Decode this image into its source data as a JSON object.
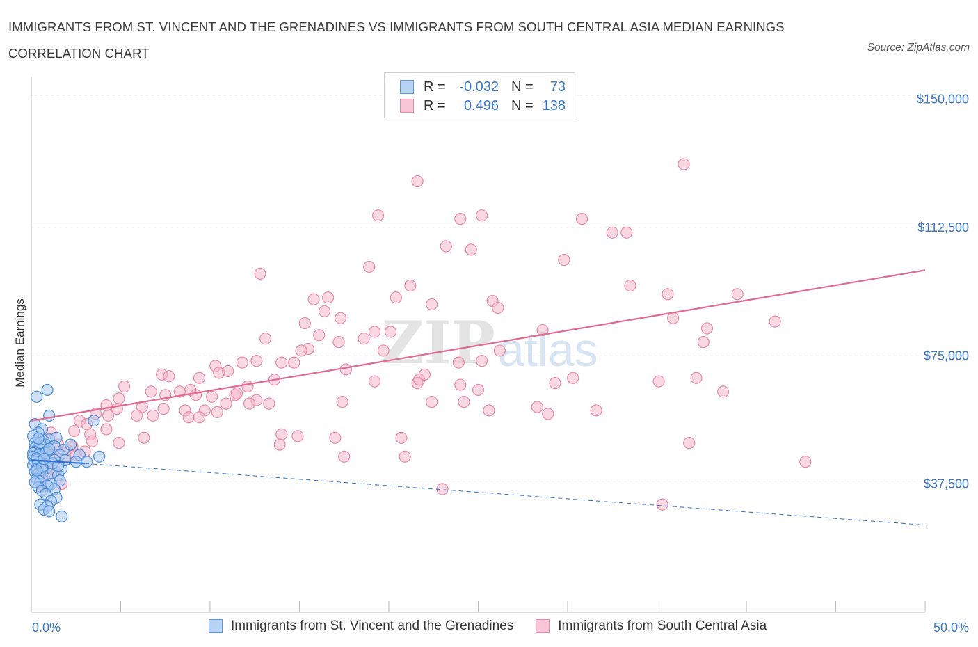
{
  "title": "IMMIGRANTS FROM ST. VINCENT AND THE GRENADINES VS IMMIGRANTS FROM SOUTH CENTRAL ASIA MEDIAN EARNINGS CORRELATION CHART",
  "source": "Source: ZipAtlas.com",
  "watermark": {
    "zip": "ZIP",
    "atlas": "atlas"
  },
  "legend": {
    "rows": [
      {
        "r_label": "R =",
        "r_value": "-0.032",
        "n_label": "N =",
        "n_value": "73"
      },
      {
        "r_label": "R =",
        "r_value": "0.496",
        "n_label": "N =",
        "n_value": "138"
      }
    ]
  },
  "colors": {
    "blue_fill": "#a8c8f0",
    "blue_stroke": "#4a8ad8",
    "blue_line": "#2f6fcf",
    "pink_fill": "#f5b8cb",
    "pink_stroke": "#e88aa8",
    "pink_line": "#e06a92",
    "axis_label": "#3a78c9",
    "grid": "#e2e2e2"
  },
  "chart_data": {
    "type": "scatter",
    "title": "IMMIGRANTS FROM ST. VINCENT AND THE GRENADINES VS IMMIGRANTS FROM SOUTH CENTRAL ASIA MEDIAN EARNINGS CORRELATION CHART",
    "xlabel": "",
    "ylabel": "Median Earnings",
    "xlim": [
      0,
      50
    ],
    "ylim": [
      0,
      155000
    ],
    "x_tick_labels": [
      "0.0%",
      "50.0%"
    ],
    "y_tick_labels": [
      "$37,500",
      "$75,000",
      "$112,500",
      "$150,000"
    ],
    "y_ticks": [
      37500,
      75000,
      112500,
      150000
    ],
    "grid": true,
    "legend_position": "top-center",
    "series": [
      {
        "name": "Immigrants from St. Vincent and the Grenadines",
        "color": "#4a8ad8",
        "trend": {
          "x0": 0,
          "y0": 44500,
          "x1": 3,
          "y1": 43500,
          "dashed_x1": 50,
          "dashed_y1": 25500
        },
        "points": [
          [
            0.3,
            63000
          ],
          [
            0.9,
            65000
          ],
          [
            1.0,
            57500
          ],
          [
            3.5,
            56000
          ],
          [
            0.2,
            55000
          ],
          [
            0.6,
            53500
          ],
          [
            0.4,
            52500
          ],
          [
            0.1,
            51500
          ],
          [
            1.0,
            50500
          ],
          [
            1.4,
            51000
          ],
          [
            0.7,
            50000
          ],
          [
            0.2,
            49500
          ],
          [
            0.8,
            49000
          ],
          [
            0.5,
            48500
          ],
          [
            0.2,
            48000
          ],
          [
            1.3,
            48500
          ],
          [
            0.6,
            47500
          ],
          [
            0.9,
            47000
          ],
          [
            1.8,
            47500
          ],
          [
            0.2,
            47000
          ],
          [
            0.1,
            46500
          ],
          [
            1.6,
            46000
          ],
          [
            0.4,
            46000
          ],
          [
            2.7,
            46000
          ],
          [
            3.8,
            45500
          ],
          [
            0.1,
            45500
          ],
          [
            0.8,
            45000
          ],
          [
            0.3,
            44500
          ],
          [
            1.3,
            44500
          ],
          [
            0.2,
            44000
          ],
          [
            2.5,
            44000
          ],
          [
            3.1,
            44000
          ],
          [
            0.4,
            43500
          ],
          [
            0.7,
            43000
          ],
          [
            0.1,
            43000
          ],
          [
            0.9,
            42500
          ],
          [
            0.3,
            42000
          ],
          [
            1.7,
            42000
          ],
          [
            0.6,
            41500
          ],
          [
            0.2,
            41000
          ],
          [
            0.4,
            40500
          ],
          [
            1.1,
            40500
          ],
          [
            1.5,
            40000
          ],
          [
            0.7,
            39500
          ],
          [
            0.3,
            39000
          ],
          [
            1.6,
            38500
          ],
          [
            0.5,
            38000
          ],
          [
            1.1,
            37500
          ],
          [
            0.9,
            37000
          ],
          [
            0.4,
            36500
          ],
          [
            1.3,
            36000
          ],
          [
            0.6,
            35500
          ],
          [
            0.8,
            34500
          ],
          [
            1.4,
            33500
          ],
          [
            1.1,
            32500
          ],
          [
            0.5,
            31500
          ],
          [
            0.9,
            31000
          ],
          [
            0.7,
            30000
          ],
          [
            1.0,
            29500
          ],
          [
            1.7,
            28000
          ],
          [
            0.3,
            45000
          ],
          [
            1.2,
            43500
          ],
          [
            0.8,
            46500
          ],
          [
            0.5,
            49500
          ],
          [
            1.9,
            44500
          ],
          [
            0.2,
            38000
          ],
          [
            0.6,
            42500
          ],
          [
            1.0,
            47800
          ],
          [
            0.4,
            50800
          ],
          [
            2.2,
            49000
          ],
          [
            0.3,
            41500
          ],
          [
            1.5,
            42800
          ],
          [
            0.7,
            44800
          ]
        ]
      },
      {
        "name": "Immigrants from South Central Asia",
        "color": "#e88aa8",
        "trend": {
          "x0": 0,
          "y0": 56000,
          "x1": 50,
          "y1": 100000
        },
        "points": [
          [
            36.5,
            131000
          ],
          [
            21.6,
            126000
          ],
          [
            19.4,
            116000
          ],
          [
            25.2,
            116000
          ],
          [
            24.0,
            115000
          ],
          [
            30.8,
            115000
          ],
          [
            32.5,
            111000
          ],
          [
            33.3,
            111000
          ],
          [
            23.2,
            107000
          ],
          [
            24.6,
            106000
          ],
          [
            29.8,
            103000
          ],
          [
            18.9,
            101000
          ],
          [
            12.8,
            99000
          ],
          [
            21.2,
            95500
          ],
          [
            33.5,
            95500
          ],
          [
            35.6,
            93000
          ],
          [
            39.5,
            93000
          ],
          [
            16.6,
            92000
          ],
          [
            20.4,
            92000
          ],
          [
            25.8,
            91000
          ],
          [
            22.4,
            90000
          ],
          [
            26.1,
            89000
          ],
          [
            16.4,
            88000
          ],
          [
            17.3,
            86000
          ],
          [
            35.9,
            86000
          ],
          [
            41.6,
            85000
          ],
          [
            15.3,
            84500
          ],
          [
            37.8,
            83000
          ],
          [
            19.2,
            82000
          ],
          [
            20.1,
            82000
          ],
          [
            28.6,
            82500
          ],
          [
            16.1,
            81000
          ],
          [
            13.1,
            80000
          ],
          [
            18.6,
            80000
          ],
          [
            17.2,
            79000
          ],
          [
            37.6,
            79000
          ],
          [
            15.5,
            77000
          ],
          [
            15.1,
            76500
          ],
          [
            19.7,
            76500
          ],
          [
            26.2,
            76500
          ],
          [
            12.6,
            73500
          ],
          [
            11.8,
            73000
          ],
          [
            14.0,
            73000
          ],
          [
            14.7,
            73000
          ],
          [
            23.9,
            73000
          ],
          [
            10.3,
            72000
          ],
          [
            25.2,
            73500
          ],
          [
            17.6,
            71000
          ],
          [
            10.5,
            70000
          ],
          [
            11.0,
            70500
          ],
          [
            7.3,
            69500
          ],
          [
            7.7,
            69000
          ],
          [
            9.4,
            68500
          ],
          [
            13.6,
            68000
          ],
          [
            37.2,
            68500
          ],
          [
            19.2,
            67500
          ],
          [
            21.6,
            67000
          ],
          [
            21.7,
            68000
          ],
          [
            24.0,
            66500
          ],
          [
            29.3,
            67000
          ],
          [
            30.3,
            68500
          ],
          [
            35.1,
            67500
          ],
          [
            5.2,
            66000
          ],
          [
            12.1,
            66000
          ],
          [
            8.9,
            65000
          ],
          [
            6.7,
            64500
          ],
          [
            7.5,
            63500
          ],
          [
            8.3,
            64500
          ],
          [
            9.2,
            63500
          ],
          [
            10.1,
            63000
          ],
          [
            11.4,
            63500
          ],
          [
            12.6,
            62000
          ],
          [
            25.0,
            65000
          ],
          [
            38.7,
            64500
          ],
          [
            4.9,
            62500
          ],
          [
            10.9,
            61000
          ],
          [
            12.2,
            61000
          ],
          [
            13.3,
            61000
          ],
          [
            17.4,
            61500
          ],
          [
            22.4,
            61500
          ],
          [
            24.2,
            61500
          ],
          [
            6.2,
            60000
          ],
          [
            4.2,
            60500
          ],
          [
            7.4,
            59500
          ],
          [
            8.6,
            59000
          ],
          [
            9.7,
            59000
          ],
          [
            10.4,
            58500
          ],
          [
            4.8,
            59500
          ],
          [
            3.6,
            58000
          ],
          [
            4.3,
            57500
          ],
          [
            5.9,
            57500
          ],
          [
            6.8,
            57500
          ],
          [
            8.8,
            57000
          ],
          [
            9.4,
            57000
          ],
          [
            25.6,
            59000
          ],
          [
            28.3,
            60000
          ],
          [
            28.9,
            58000
          ],
          [
            31.6,
            59000
          ],
          [
            2.7,
            56000
          ],
          [
            3.1,
            55000
          ],
          [
            4.2,
            53500
          ],
          [
            2.4,
            53000
          ],
          [
            1.1,
            52500
          ],
          [
            3.3,
            52000
          ],
          [
            6.3,
            51000
          ],
          [
            14.0,
            52000
          ],
          [
            14.9,
            51500
          ],
          [
            17.0,
            51000
          ],
          [
            20.7,
            51000
          ],
          [
            36.8,
            49500
          ],
          [
            4.9,
            49500
          ],
          [
            3.4,
            50000
          ],
          [
            2.3,
            48500
          ],
          [
            1.5,
            49000
          ],
          [
            13.9,
            49000
          ],
          [
            0.7,
            47000
          ],
          [
            1.4,
            46000
          ],
          [
            2.0,
            47500
          ],
          [
            0.3,
            45000
          ],
          [
            0.9,
            44000
          ],
          [
            17.5,
            45500
          ],
          [
            20.9,
            45500
          ],
          [
            43.3,
            44000
          ],
          [
            0.5,
            42000
          ],
          [
            1.3,
            41500
          ],
          [
            0.9,
            40000
          ],
          [
            0.4,
            38500
          ],
          [
            1.7,
            37500
          ],
          [
            0.6,
            36500
          ],
          [
            23.0,
            36000
          ],
          [
            35.3,
            31500
          ],
          [
            15.8,
            91500
          ],
          [
            2.5,
            46000
          ],
          [
            1.9,
            44500
          ],
          [
            3.0,
            47000
          ],
          [
            0.8,
            43000
          ],
          [
            22.0,
            69500
          ],
          [
            11.5,
            64000
          ]
        ]
      }
    ]
  }
}
